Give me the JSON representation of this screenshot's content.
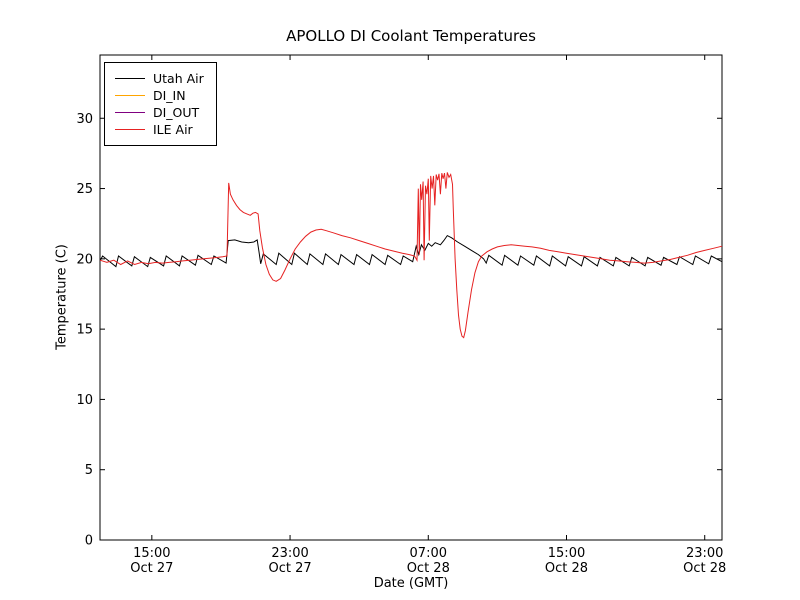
{
  "chart_data": {
    "type": "line",
    "title": "APOLLO DI Coolant Temperatures",
    "xlabel": "Date (GMT)",
    "ylabel": "Temperature (C)",
    "x_unit": "hours since Oct 27 12:00 GMT",
    "xlim": [
      0,
      36
    ],
    "ylim": [
      0,
      34.5
    ],
    "grid": false,
    "legend_position": "upper-left",
    "x_ticks": [
      {
        "pos": 3,
        "lines": [
          "15:00",
          "Oct 27"
        ]
      },
      {
        "pos": 11,
        "lines": [
          "23:00",
          "Oct 27"
        ]
      },
      {
        "pos": 19,
        "lines": [
          "07:00",
          "Oct 28"
        ]
      },
      {
        "pos": 27,
        "lines": [
          "15:00",
          "Oct 28"
        ]
      },
      {
        "pos": 35,
        "lines": [
          "23:00",
          "Oct 28"
        ]
      }
    ],
    "y_ticks": [
      0,
      5,
      10,
      15,
      20,
      25,
      30
    ],
    "series": [
      {
        "name": "Utah Air",
        "color": "#000000",
        "points": [
          [
            0,
            19.85
          ],
          [
            0.15,
            20.2
          ],
          [
            0.92,
            19.45
          ],
          [
            1.07,
            20.2
          ],
          [
            1.84,
            19.5
          ],
          [
            1.99,
            20.15
          ],
          [
            2.76,
            19.45
          ],
          [
            2.91,
            20.1
          ],
          [
            3.68,
            19.5
          ],
          [
            3.83,
            20.2
          ],
          [
            4.6,
            19.5
          ],
          [
            4.75,
            20.2
          ],
          [
            5.52,
            19.55
          ],
          [
            5.67,
            20.25
          ],
          [
            6.44,
            19.6
          ],
          [
            6.59,
            20.2
          ],
          [
            7.3,
            19.7
          ],
          [
            7.42,
            21.3
          ],
          [
            7.8,
            21.35
          ],
          [
            8.2,
            21.2
          ],
          [
            8.6,
            21.15
          ],
          [
            8.9,
            21.2
          ],
          [
            9.1,
            21.35
          ],
          [
            9.2,
            20.5
          ],
          [
            9.3,
            19.65
          ],
          [
            9.45,
            20.35
          ],
          [
            10.2,
            19.6
          ],
          [
            10.35,
            20.4
          ],
          [
            11.1,
            19.6
          ],
          [
            11.25,
            20.4
          ],
          [
            12.0,
            19.6
          ],
          [
            12.15,
            20.35
          ],
          [
            12.9,
            19.6
          ],
          [
            13.05,
            20.35
          ],
          [
            13.8,
            19.6
          ],
          [
            13.95,
            20.3
          ],
          [
            14.7,
            19.6
          ],
          [
            14.85,
            20.3
          ],
          [
            15.6,
            19.6
          ],
          [
            15.75,
            20.3
          ],
          [
            16.5,
            19.6
          ],
          [
            16.65,
            20.25
          ],
          [
            17.4,
            19.6
          ],
          [
            17.55,
            20.2
          ],
          [
            18.1,
            19.8
          ],
          [
            18.3,
            20.9
          ],
          [
            18.45,
            20.3
          ],
          [
            18.6,
            21.0
          ],
          [
            18.8,
            20.6
          ],
          [
            19.0,
            21.1
          ],
          [
            19.2,
            20.9
          ],
          [
            19.4,
            21.15
          ],
          [
            19.7,
            21.0
          ],
          [
            19.9,
            21.3
          ],
          [
            20.1,
            21.65
          ],
          [
            20.35,
            21.5
          ],
          [
            20.7,
            21.2
          ],
          [
            21.1,
            20.9
          ],
          [
            21.5,
            20.6
          ],
          [
            21.9,
            20.3
          ],
          [
            22.2,
            20.0
          ],
          [
            22.35,
            19.7
          ],
          [
            22.5,
            20.25
          ],
          [
            23.27,
            19.55
          ],
          [
            23.42,
            20.25
          ],
          [
            24.19,
            19.55
          ],
          [
            24.34,
            20.2
          ],
          [
            25.11,
            19.55
          ],
          [
            25.26,
            20.2
          ],
          [
            26.03,
            19.5
          ],
          [
            26.18,
            20.2
          ],
          [
            26.95,
            19.5
          ],
          [
            27.1,
            20.15
          ],
          [
            27.87,
            19.5
          ],
          [
            28.02,
            20.15
          ],
          [
            28.79,
            19.5
          ],
          [
            28.94,
            20.1
          ],
          [
            29.71,
            19.5
          ],
          [
            29.86,
            20.1
          ],
          [
            30.63,
            19.5
          ],
          [
            30.78,
            20.1
          ],
          [
            31.55,
            19.5
          ],
          [
            31.7,
            20.1
          ],
          [
            32.47,
            19.55
          ],
          [
            32.62,
            20.1
          ],
          [
            33.39,
            19.6
          ],
          [
            33.54,
            20.15
          ],
          [
            34.31,
            19.6
          ],
          [
            34.46,
            20.2
          ],
          [
            35.23,
            19.65
          ],
          [
            35.38,
            20.2
          ],
          [
            36,
            19.8
          ]
        ]
      },
      {
        "name": "DI_IN",
        "color": "#ffa500",
        "points": []
      },
      {
        "name": "DI_OUT",
        "color": "#800080",
        "points": []
      },
      {
        "name": "ILE Air",
        "color": "#e62222",
        "points": [
          [
            0,
            19.9
          ],
          [
            0.4,
            19.75
          ],
          [
            0.8,
            19.9
          ],
          [
            1.2,
            19.6
          ],
          [
            1.6,
            19.85
          ],
          [
            2.0,
            19.6
          ],
          [
            2.4,
            19.75
          ],
          [
            2.8,
            19.65
          ],
          [
            3.2,
            19.75
          ],
          [
            3.6,
            19.7
          ],
          [
            4.0,
            19.75
          ],
          [
            4.4,
            19.8
          ],
          [
            4.8,
            19.85
          ],
          [
            5.2,
            19.9
          ],
          [
            5.6,
            19.95
          ],
          [
            6.0,
            20.0
          ],
          [
            6.4,
            20.05
          ],
          [
            6.8,
            20.1
          ],
          [
            7.1,
            20.15
          ],
          [
            7.35,
            20.2
          ],
          [
            7.45,
            25.4
          ],
          [
            7.55,
            24.6
          ],
          [
            7.7,
            24.2
          ],
          [
            7.9,
            23.8
          ],
          [
            8.1,
            23.5
          ],
          [
            8.3,
            23.3
          ],
          [
            8.5,
            23.2
          ],
          [
            8.7,
            23.1
          ],
          [
            8.85,
            23.25
          ],
          [
            9.0,
            23.3
          ],
          [
            9.15,
            23.2
          ],
          [
            9.25,
            22.0
          ],
          [
            9.4,
            20.8
          ],
          [
            9.6,
            19.6
          ],
          [
            9.8,
            18.9
          ],
          [
            10.0,
            18.5
          ],
          [
            10.2,
            18.4
          ],
          [
            10.45,
            18.6
          ],
          [
            10.7,
            19.2
          ],
          [
            11.0,
            20.0
          ],
          [
            11.3,
            20.7
          ],
          [
            11.6,
            21.2
          ],
          [
            11.9,
            21.6
          ],
          [
            12.2,
            21.9
          ],
          [
            12.5,
            22.05
          ],
          [
            12.8,
            22.1
          ],
          [
            13.1,
            22.0
          ],
          [
            13.5,
            21.85
          ],
          [
            14.0,
            21.65
          ],
          [
            14.5,
            21.5
          ],
          [
            15.0,
            21.3
          ],
          [
            15.5,
            21.1
          ],
          [
            16.0,
            20.9
          ],
          [
            16.5,
            20.7
          ],
          [
            17.0,
            20.55
          ],
          [
            17.5,
            20.4
          ],
          [
            17.9,
            20.3
          ],
          [
            18.2,
            20.2
          ],
          [
            18.35,
            19.9
          ],
          [
            18.42,
            25.0
          ],
          [
            18.48,
            20.3
          ],
          [
            18.55,
            25.3
          ],
          [
            18.62,
            24.2
          ],
          [
            18.7,
            25.5
          ],
          [
            18.76,
            19.9
          ],
          [
            18.84,
            25.2
          ],
          [
            18.92,
            24.6
          ],
          [
            19.0,
            25.7
          ],
          [
            19.06,
            21.3
          ],
          [
            19.14,
            25.9
          ],
          [
            19.22,
            25.0
          ],
          [
            19.3,
            25.9
          ],
          [
            19.38,
            23.8
          ],
          [
            19.46,
            26.0
          ],
          [
            19.54,
            25.6
          ],
          [
            19.62,
            26.05
          ],
          [
            19.7,
            24.6
          ],
          [
            19.78,
            26.1
          ],
          [
            19.86,
            25.7
          ],
          [
            19.94,
            26.1
          ],
          [
            20.02,
            25.0
          ],
          [
            20.1,
            26.15
          ],
          [
            20.2,
            25.8
          ],
          [
            20.3,
            26.0
          ],
          [
            20.4,
            25.3
          ],
          [
            20.45,
            23.5
          ],
          [
            20.55,
            20.0
          ],
          [
            20.65,
            17.8
          ],
          [
            20.75,
            16.0
          ],
          [
            20.85,
            15.0
          ],
          [
            20.95,
            14.5
          ],
          [
            21.05,
            14.4
          ],
          [
            21.15,
            14.9
          ],
          [
            21.3,
            16.2
          ],
          [
            21.5,
            17.8
          ],
          [
            21.7,
            19.0
          ],
          [
            21.9,
            19.8
          ],
          [
            22.1,
            20.2
          ],
          [
            22.4,
            20.5
          ],
          [
            22.7,
            20.7
          ],
          [
            23.0,
            20.85
          ],
          [
            23.4,
            20.95
          ],
          [
            23.8,
            21.0
          ],
          [
            24.2,
            20.95
          ],
          [
            24.6,
            20.9
          ],
          [
            25.0,
            20.85
          ],
          [
            25.5,
            20.75
          ],
          [
            26.0,
            20.6
          ],
          [
            26.5,
            20.5
          ],
          [
            27.0,
            20.4
          ],
          [
            27.5,
            20.3
          ],
          [
            28.0,
            20.2
          ],
          [
            28.5,
            20.1
          ],
          [
            29.0,
            20.0
          ],
          [
            29.5,
            19.9
          ],
          [
            30.0,
            19.85
          ],
          [
            30.5,
            19.8
          ],
          [
            31.0,
            19.75
          ],
          [
            31.5,
            19.7
          ],
          [
            32.0,
            19.75
          ],
          [
            32.5,
            19.85
          ],
          [
            33.0,
            19.95
          ],
          [
            33.5,
            20.1
          ],
          [
            34.0,
            20.25
          ],
          [
            34.5,
            20.45
          ],
          [
            35.0,
            20.6
          ],
          [
            35.5,
            20.75
          ],
          [
            36,
            20.9
          ]
        ]
      }
    ]
  }
}
